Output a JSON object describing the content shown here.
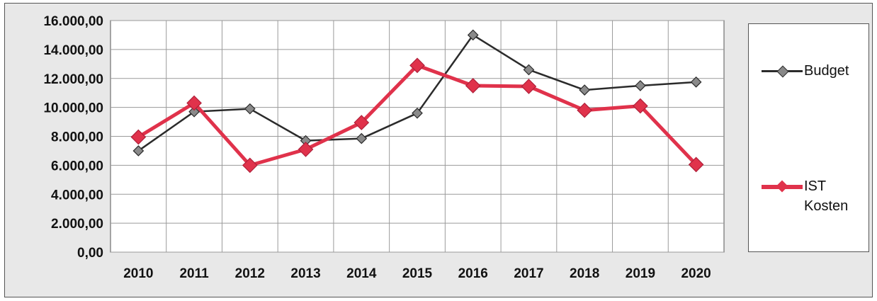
{
  "chart_data": {
    "type": "line",
    "categories": [
      "2010",
      "2011",
      "2012",
      "2013",
      "2014",
      "2015",
      "2016",
      "2017",
      "2018",
      "2019",
      "2020"
    ],
    "y_ticks": [
      "0,00",
      "2.000,00",
      "4.000,00",
      "6.000,00",
      "8.000,00",
      "10.000,00",
      "12.000,00",
      "14.000,00",
      "16.000,00"
    ],
    "ylim": [
      0,
      16000
    ],
    "grid": true,
    "legend_position": "right",
    "series": [
      {
        "name": "Budget",
        "color": "#2b2b2b",
        "values": [
          7000,
          9700,
          9900,
          7700,
          7850,
          9600,
          15000,
          12600,
          11200,
          11500,
          11750
        ]
      },
      {
        "name": "IST Kosten",
        "color": "#e0324b",
        "values": [
          7950,
          10300,
          6000,
          7100,
          8950,
          12900,
          11500,
          11450,
          9800,
          10100,
          6050
        ]
      }
    ]
  }
}
